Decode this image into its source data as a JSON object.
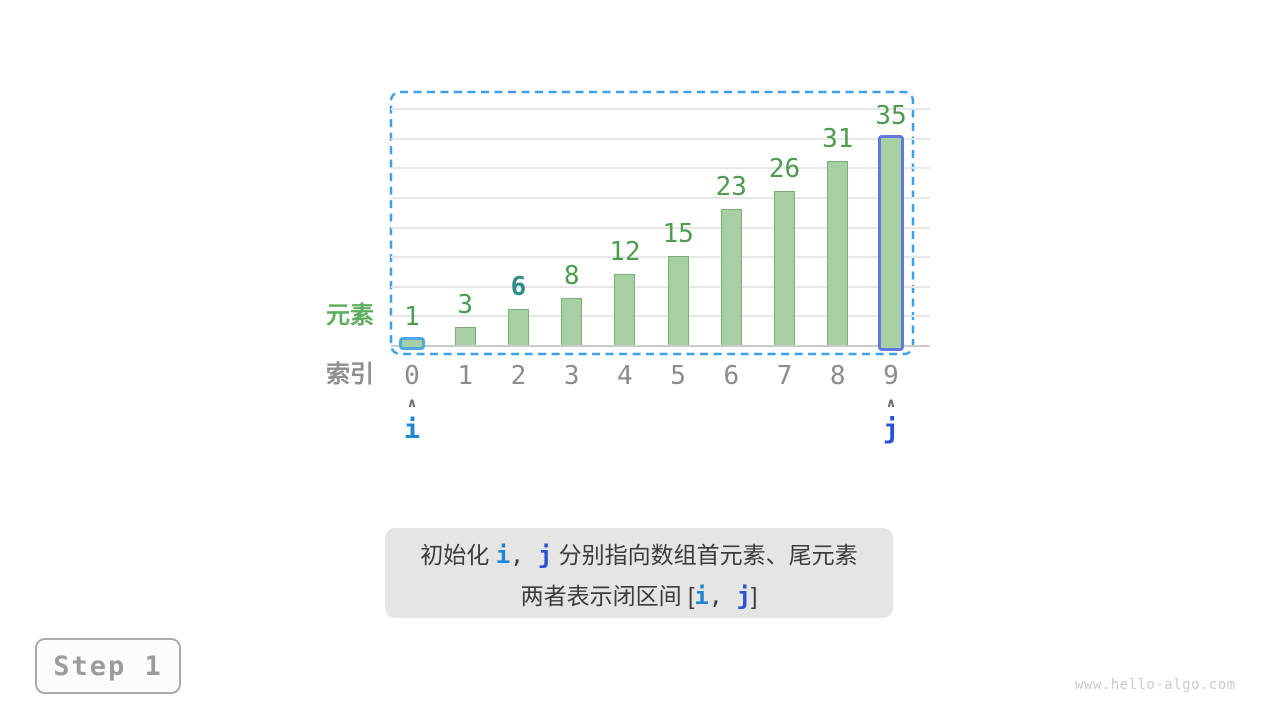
{
  "page": {
    "background": "#ffffff",
    "watermark": "www.hello-algo.com"
  },
  "step_panel": {
    "label": "Step 1"
  },
  "chart_data": {
    "type": "bar",
    "title": "",
    "categories": [
      "0",
      "1",
      "2",
      "3",
      "4",
      "5",
      "6",
      "7",
      "8",
      "9"
    ],
    "values": [
      1,
      3,
      6,
      8,
      12,
      15,
      23,
      26,
      31,
      35
    ],
    "ylim": [
      0,
      40
    ],
    "gridline_step": 5,
    "grid": "horizontal",
    "legend": "none",
    "xlabel": "",
    "ylabel": "",
    "target_value": 6,
    "target_index": 2,
    "row_labels": {
      "values_row": "元素",
      "index_row": "索引"
    },
    "pointers": [
      {
        "name": "i",
        "index": 0
      },
      {
        "name": "j",
        "index": 9
      }
    ],
    "selected_range": {
      "from_index": 0,
      "to_index": 9
    }
  },
  "colors": {
    "bar_fill": "#A6CFA3",
    "bar_border": "#7CAF78",
    "value_label": "#4E9B51",
    "target_label": "#2E8C8A",
    "element_label": "#5FAD5F",
    "index_label": "#8C8C8C",
    "i_highlight": "#4FA8E5",
    "j_highlight": "#6478DB",
    "i_text": "#1E87D3",
    "j_text": "#2B52D3",
    "range_border": "#3DA0E8",
    "gridline": "#E7E7E7",
    "baseline": "#CBCBCB"
  },
  "caption": {
    "line1": {
      "pre": "初始化 ",
      "i": "i",
      "sep": ", ",
      "j": "j",
      "post": " 分别指向数组首元素、尾元素"
    },
    "line2": {
      "pre": "两者表示闭区间 [",
      "i": "i",
      "sep": ", ",
      "j": "j",
      "post": "]"
    }
  }
}
